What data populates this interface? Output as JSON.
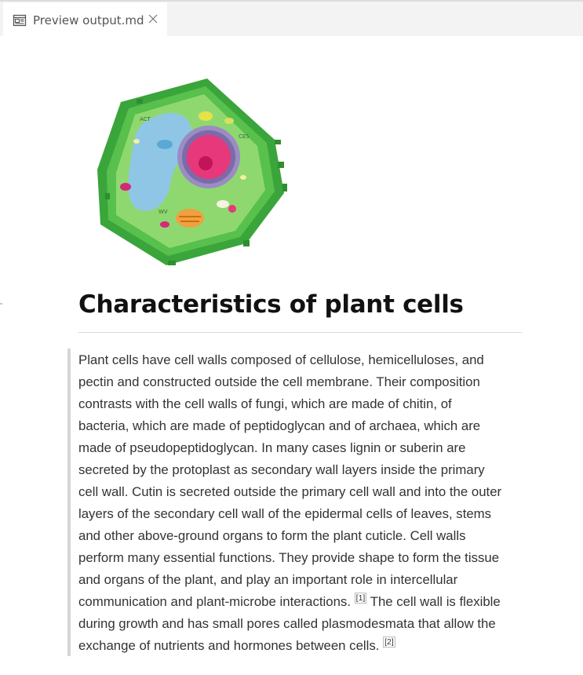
{
  "tab": {
    "icon": "preview-icon",
    "title": "Preview output.md",
    "close_icon": "close-icon"
  },
  "document": {
    "image_alt": "plant cell diagram",
    "heading": "Characteristics of plant cells",
    "quote_lines": [
      "Plant cells have cell walls composed of cellulose, hemicelluloses, and",
      "pectin and constructed outside the cell membrane. Their composition",
      "contrasts with the cell walls of fungi, which are made of chitin, of",
      "bacteria, which are made of peptidoglycan and of archaea, which are",
      "made of pseudopeptidoglycan. In many cases lignin or suberin are",
      "secreted by the protoplast as secondary wall layers inside the primary",
      "cell wall. Cutin is secreted outside the primary cell wall and into the outer",
      "layers of the secondary cell wall of the epidermal cells of leaves, stems",
      "and other above-ground organs to form the plant cuticle. Cell walls",
      "perform many essential functions. They provide shape to form the tissue",
      "and organs of the plant, and play an important role in intercellular",
      "communication and plant-microbe interactions.",
      "The cell wall is flexible",
      "during growth and has small pores called plasmodesmata that allow the",
      "exchange of nutrients and hormones between cells."
    ],
    "citations": [
      "[1]",
      "[2]"
    ]
  }
}
